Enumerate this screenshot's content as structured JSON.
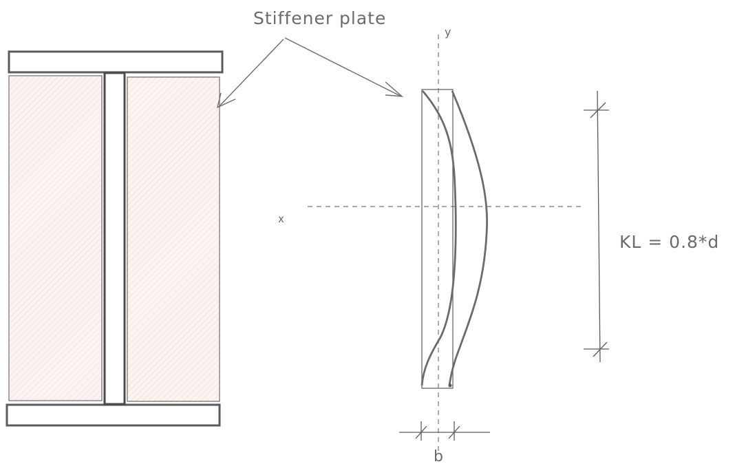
{
  "labels": {
    "stiffener": "Stiffener plate",
    "axis_y": "y",
    "axis_x": "x",
    "effective_length": "KL = 0.8*d",
    "width": "b"
  },
  "colors": {
    "stroke": "#5a5a5a",
    "thin_stroke": "#6b6b6b",
    "hatch_fill": "#fdf4f2",
    "hatch_line": "#f2cfc8",
    "dash": "#777777"
  }
}
